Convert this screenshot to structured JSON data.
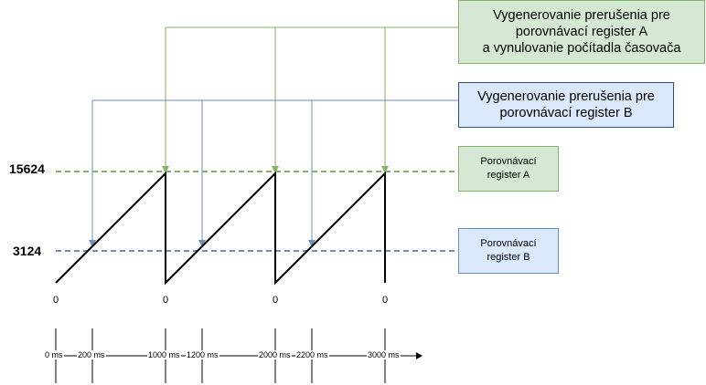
{
  "boxes": {
    "interrupt_a": [
      "Vygenerovanie prerušenia pre",
      "porovnávací register A",
      "a vynulovanie počítadla časovača"
    ],
    "interrupt_b": [
      "Vygenerovanie prerušenia pre",
      "porovnávací register B"
    ],
    "register_a": [
      "Porovnávací",
      "register A"
    ],
    "register_b": [
      "Porovnávací",
      "register B"
    ]
  },
  "y_levels": {
    "top": "15624",
    "mid": "3124"
  },
  "zero_labels": [
    "0",
    "0",
    "0",
    "0"
  ],
  "time_axis": [
    "0 ms",
    "200 ms",
    "1000 ms",
    "1200 ms",
    "2000 ms",
    "2200 ms",
    "3000 ms"
  ],
  "colors": {
    "green_line": "#82b366",
    "blue_line": "#6c8ebf",
    "green_fill": "#d5e8d4",
    "blue_fill": "#dae8fc"
  }
}
